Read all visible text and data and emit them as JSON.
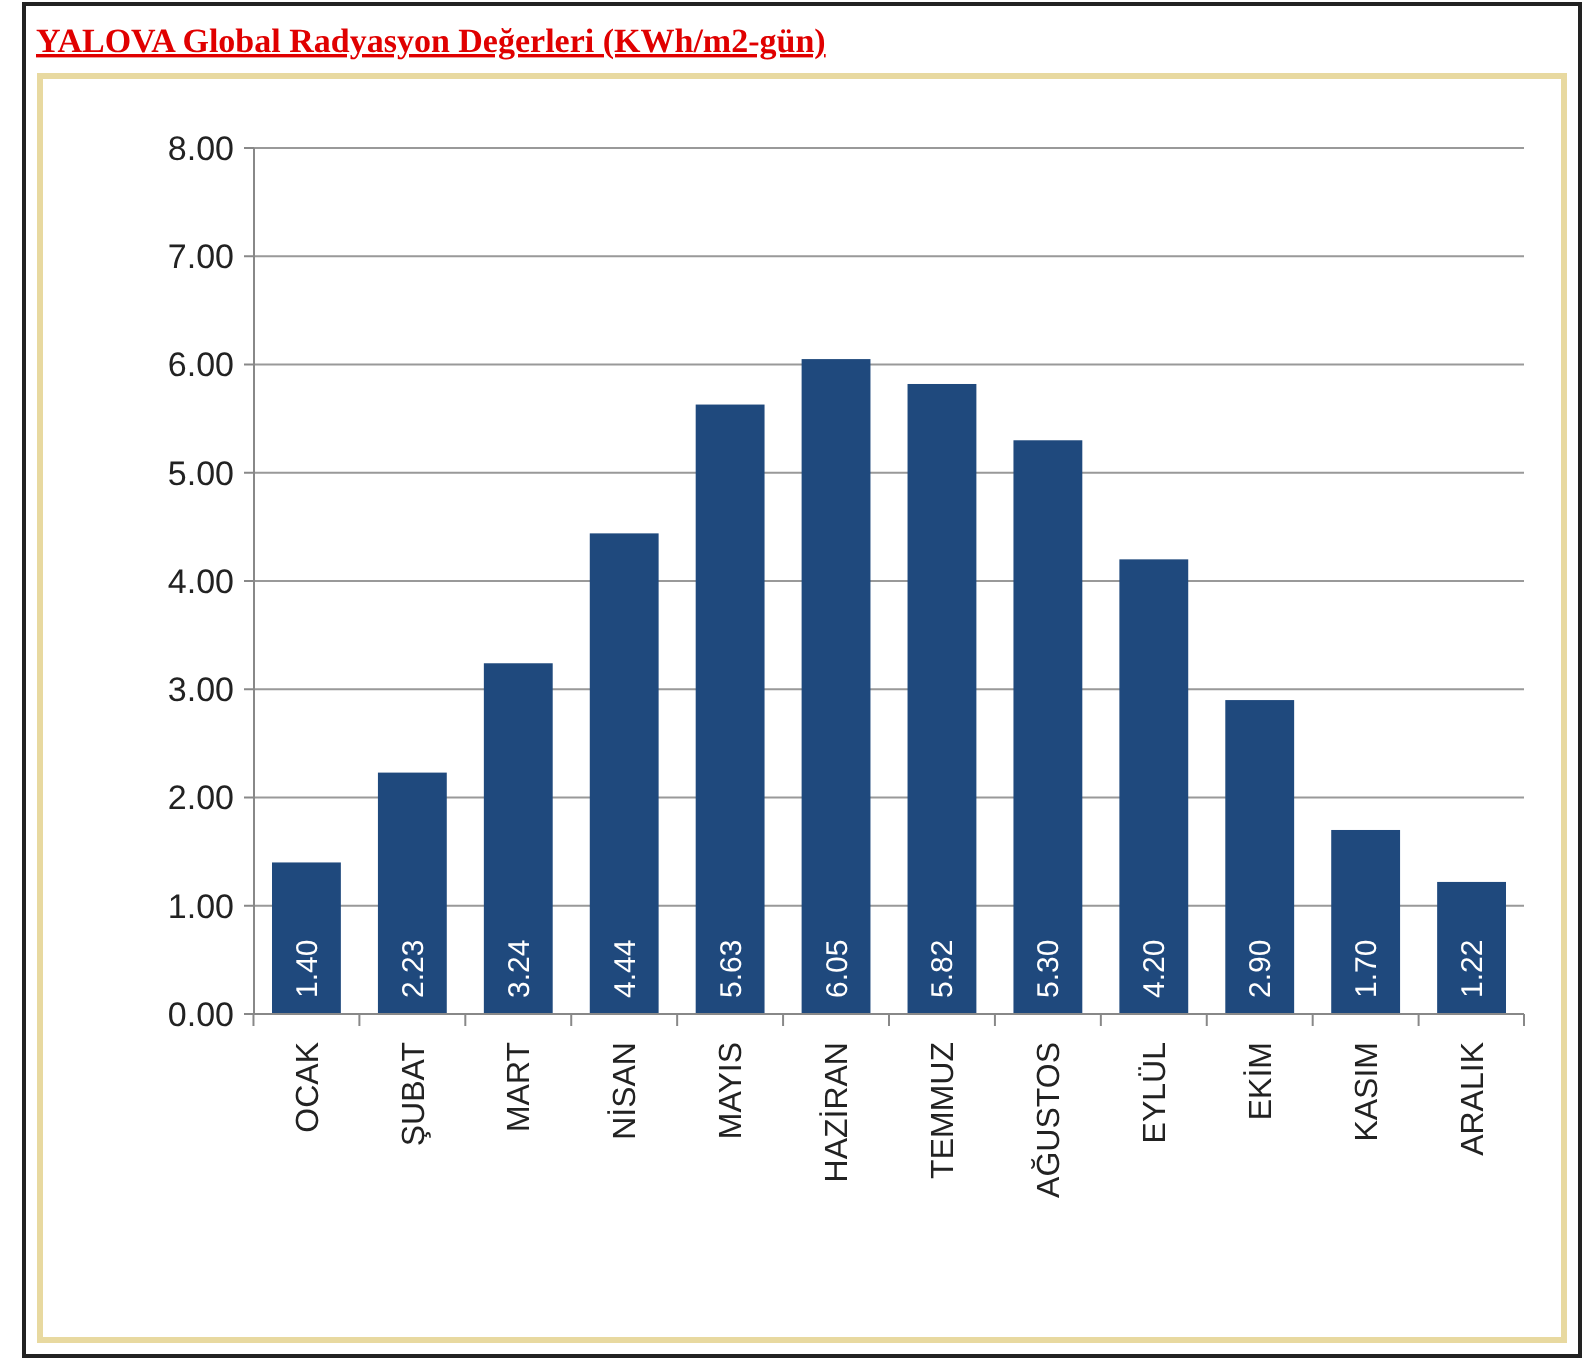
{
  "chart_data": {
    "type": "bar",
    "title": "YALOVA Global Radyasyon Değerleri (KWh/m2-gün)",
    "categories": [
      "OCAK",
      "ŞUBAT",
      "MART",
      "NİSAN",
      "MAYIS",
      "HAZİRAN",
      "TEMMUZ",
      "AĞUSTOS",
      "EYLÜL",
      "EKİM",
      "KASIM",
      "ARALIK"
    ],
    "values": [
      1.4,
      2.23,
      3.24,
      4.44,
      5.63,
      6.05,
      5.82,
      5.3,
      4.2,
      2.9,
      1.7,
      1.22
    ],
    "value_labels": [
      "1.40",
      "2.23",
      "3.24",
      "4.44",
      "5.63",
      "6.05",
      "5.82",
      "5.30",
      "4.20",
      "2.90",
      "1.70",
      "1.22"
    ],
    "color": "#1f497d",
    "ylim": [
      0,
      8
    ],
    "yticks": [
      {
        "value": 0,
        "label": "0.00"
      },
      {
        "value": 1,
        "label": "1.00"
      },
      {
        "value": 2,
        "label": "2.00"
      },
      {
        "value": 3,
        "label": "3.00"
      },
      {
        "value": 4,
        "label": "4.00"
      },
      {
        "value": 5,
        "label": "5.00"
      },
      {
        "value": 6,
        "label": "6.00"
      },
      {
        "value": 7,
        "label": "7.00"
      },
      {
        "value": 8,
        "label": "8.00"
      }
    ],
    "grid": "y"
  }
}
